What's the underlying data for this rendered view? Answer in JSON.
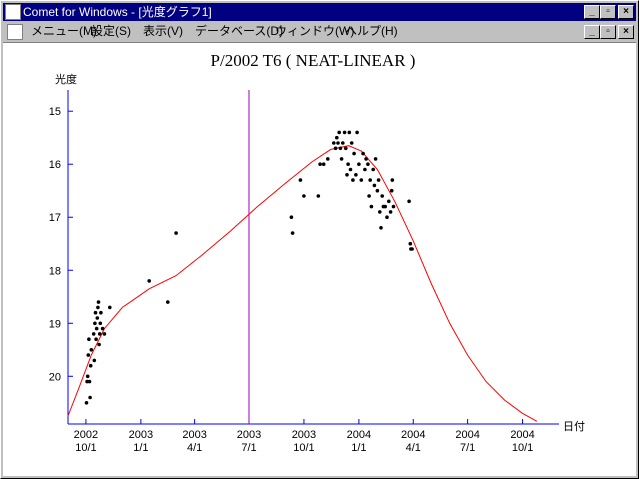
{
  "window": {
    "title": "Comet for Windows - [光度グラフ1]"
  },
  "menu": [
    "メニュー(M)",
    "設定(S)",
    "表示(V)",
    "データベース(D)",
    "ウィンドウ(W)",
    "ヘルプ(H)"
  ],
  "chart_data": {
    "type": "scatter",
    "title": "P/2002 T6 ( NEAT-LINEAR )",
    "ylabel": "光度",
    "xlabel": "日付",
    "ylim": [
      14.6,
      20.9
    ],
    "y_inverted": true,
    "yticks": [
      15,
      16,
      17,
      18,
      19,
      20
    ],
    "xlim": [
      "2002-09-01",
      "2004-12-01"
    ],
    "xticks": [
      {
        "date": "2002-10-01",
        "line1": "2002",
        "line2": "10/1"
      },
      {
        "date": "2003-01-01",
        "line1": "2003",
        "line2": "1/1"
      },
      {
        "date": "2003-04-01",
        "line1": "2003",
        "line2": "4/1"
      },
      {
        "date": "2003-07-01",
        "line1": "2003",
        "line2": "7/1"
      },
      {
        "date": "2003-10-01",
        "line1": "2003",
        "line2": "10/1"
      },
      {
        "date": "2004-01-01",
        "line1": "2004",
        "line2": "1/1"
      },
      {
        "date": "2004-04-01",
        "line1": "2004",
        "line2": "4/1"
      },
      {
        "date": "2004-07-01",
        "line1": "2004",
        "line2": "7/1"
      },
      {
        "date": "2004-10-01",
        "line1": "2004",
        "line2": "10/1"
      }
    ],
    "marker_line": "2003-07-01",
    "points": [
      [
        "2002-10-02",
        20.5
      ],
      [
        "2002-10-03",
        20.1
      ],
      [
        "2002-10-04",
        20.0
      ],
      [
        "2002-10-05",
        19.6
      ],
      [
        "2002-10-06",
        19.3
      ],
      [
        "2002-10-07",
        20.1
      ],
      [
        "2002-10-08",
        20.4
      ],
      [
        "2002-10-09",
        19.8
      ],
      [
        "2002-10-10",
        19.5
      ],
      [
        "2002-10-14",
        19.2
      ],
      [
        "2002-10-15",
        19.7
      ],
      [
        "2002-10-16",
        19.0
      ],
      [
        "2002-10-17",
        18.8
      ],
      [
        "2002-10-18",
        19.3
      ],
      [
        "2002-10-19",
        19.1
      ],
      [
        "2002-10-20",
        18.9
      ],
      [
        "2002-10-21",
        18.7
      ],
      [
        "2002-10-22",
        18.6
      ],
      [
        "2002-10-23",
        19.4
      ],
      [
        "2002-10-24",
        19.2
      ],
      [
        "2002-10-25",
        19.0
      ],
      [
        "2002-10-26",
        18.8
      ],
      [
        "2002-10-29",
        19.1
      ],
      [
        "2002-11-01",
        19.2
      ],
      [
        "2002-11-10",
        18.7
      ],
      [
        "2003-01-15",
        18.2
      ],
      [
        "2003-02-15",
        18.6
      ],
      [
        "2003-03-01",
        17.3
      ],
      [
        "2003-09-10",
        17.0
      ],
      [
        "2003-09-12",
        17.3
      ],
      [
        "2003-09-25",
        16.3
      ],
      [
        "2003-10-01",
        16.6
      ],
      [
        "2003-10-25",
        16.6
      ],
      [
        "2003-10-28",
        16.0
      ],
      [
        "2003-11-03",
        16.0
      ],
      [
        "2003-11-10",
        15.9
      ],
      [
        "2003-11-20",
        15.6
      ],
      [
        "2003-11-23",
        15.7
      ],
      [
        "2003-11-25",
        15.5
      ],
      [
        "2003-11-27",
        15.6
      ],
      [
        "2003-11-29",
        15.4
      ],
      [
        "2003-12-01",
        15.7
      ],
      [
        "2003-12-03",
        15.9
      ],
      [
        "2003-12-05",
        15.6
      ],
      [
        "2003-12-08",
        15.4
      ],
      [
        "2003-12-10",
        15.7
      ],
      [
        "2003-12-12",
        16.2
      ],
      [
        "2003-12-14",
        16.0
      ],
      [
        "2003-12-16",
        15.4
      ],
      [
        "2003-12-18",
        16.1
      ],
      [
        "2003-12-20",
        15.6
      ],
      [
        "2003-12-22",
        16.3
      ],
      [
        "2003-12-24",
        15.8
      ],
      [
        "2003-12-27",
        16.2
      ],
      [
        "2003-12-29",
        15.4
      ],
      [
        "2004-01-01",
        16.0
      ],
      [
        "2004-01-05",
        16.3
      ],
      [
        "2004-01-08",
        15.8
      ],
      [
        "2004-01-11",
        16.1
      ],
      [
        "2004-01-13",
        15.9
      ],
      [
        "2004-01-16",
        16.0
      ],
      [
        "2004-01-18",
        16.6
      ],
      [
        "2004-01-20",
        16.3
      ],
      [
        "2004-01-22",
        16.8
      ],
      [
        "2004-01-25",
        16.1
      ],
      [
        "2004-01-27",
        16.4
      ],
      [
        "2004-01-29",
        15.9
      ],
      [
        "2004-02-01",
        16.5
      ],
      [
        "2004-02-03",
        16.3
      ],
      [
        "2004-02-05",
        16.9
      ],
      [
        "2004-02-07",
        17.2
      ],
      [
        "2004-02-09",
        16.6
      ],
      [
        "2004-02-11",
        16.8
      ],
      [
        "2004-02-14",
        16.8
      ],
      [
        "2004-02-17",
        17.0
      ],
      [
        "2004-02-20",
        16.7
      ],
      [
        "2004-02-23",
        16.9
      ],
      [
        "2004-02-25",
        16.5
      ],
      [
        "2004-02-26",
        16.3
      ],
      [
        "2004-02-28",
        16.8
      ],
      [
        "2004-03-25",
        16.7
      ],
      [
        "2004-03-27",
        17.5
      ],
      [
        "2004-03-28",
        17.6
      ],
      [
        "2004-03-30",
        17.6
      ]
    ],
    "fit_curve": [
      [
        "2002-09-01",
        20.75
      ],
      [
        "2002-09-20",
        20.2
      ],
      [
        "2002-10-10",
        19.6
      ],
      [
        "2002-11-01",
        19.1
      ],
      [
        "2002-12-01",
        18.7
      ],
      [
        "2003-01-15",
        18.35
      ],
      [
        "2003-03-01",
        18.1
      ],
      [
        "2003-04-15",
        17.7
      ],
      [
        "2003-06-01",
        17.25
      ],
      [
        "2003-07-15",
        16.8
      ],
      [
        "2003-09-01",
        16.35
      ],
      [
        "2003-10-15",
        15.95
      ],
      [
        "2003-11-15",
        15.72
      ],
      [
        "2003-12-15",
        15.65
      ],
      [
        "2004-01-05",
        15.75
      ],
      [
        "2004-02-01",
        16.1
      ],
      [
        "2004-03-01",
        16.7
      ],
      [
        "2004-04-01",
        17.45
      ],
      [
        "2004-05-01",
        18.25
      ],
      [
        "2004-06-01",
        19.0
      ],
      [
        "2004-07-01",
        19.6
      ],
      [
        "2004-08-01",
        20.1
      ],
      [
        "2004-09-01",
        20.45
      ],
      [
        "2004-10-01",
        20.7
      ],
      [
        "2004-10-25",
        20.85
      ]
    ],
    "colors": {
      "axis": "#0000ff",
      "points": "#000000",
      "curve": "#ff0000",
      "marker": "#a000c0"
    }
  }
}
